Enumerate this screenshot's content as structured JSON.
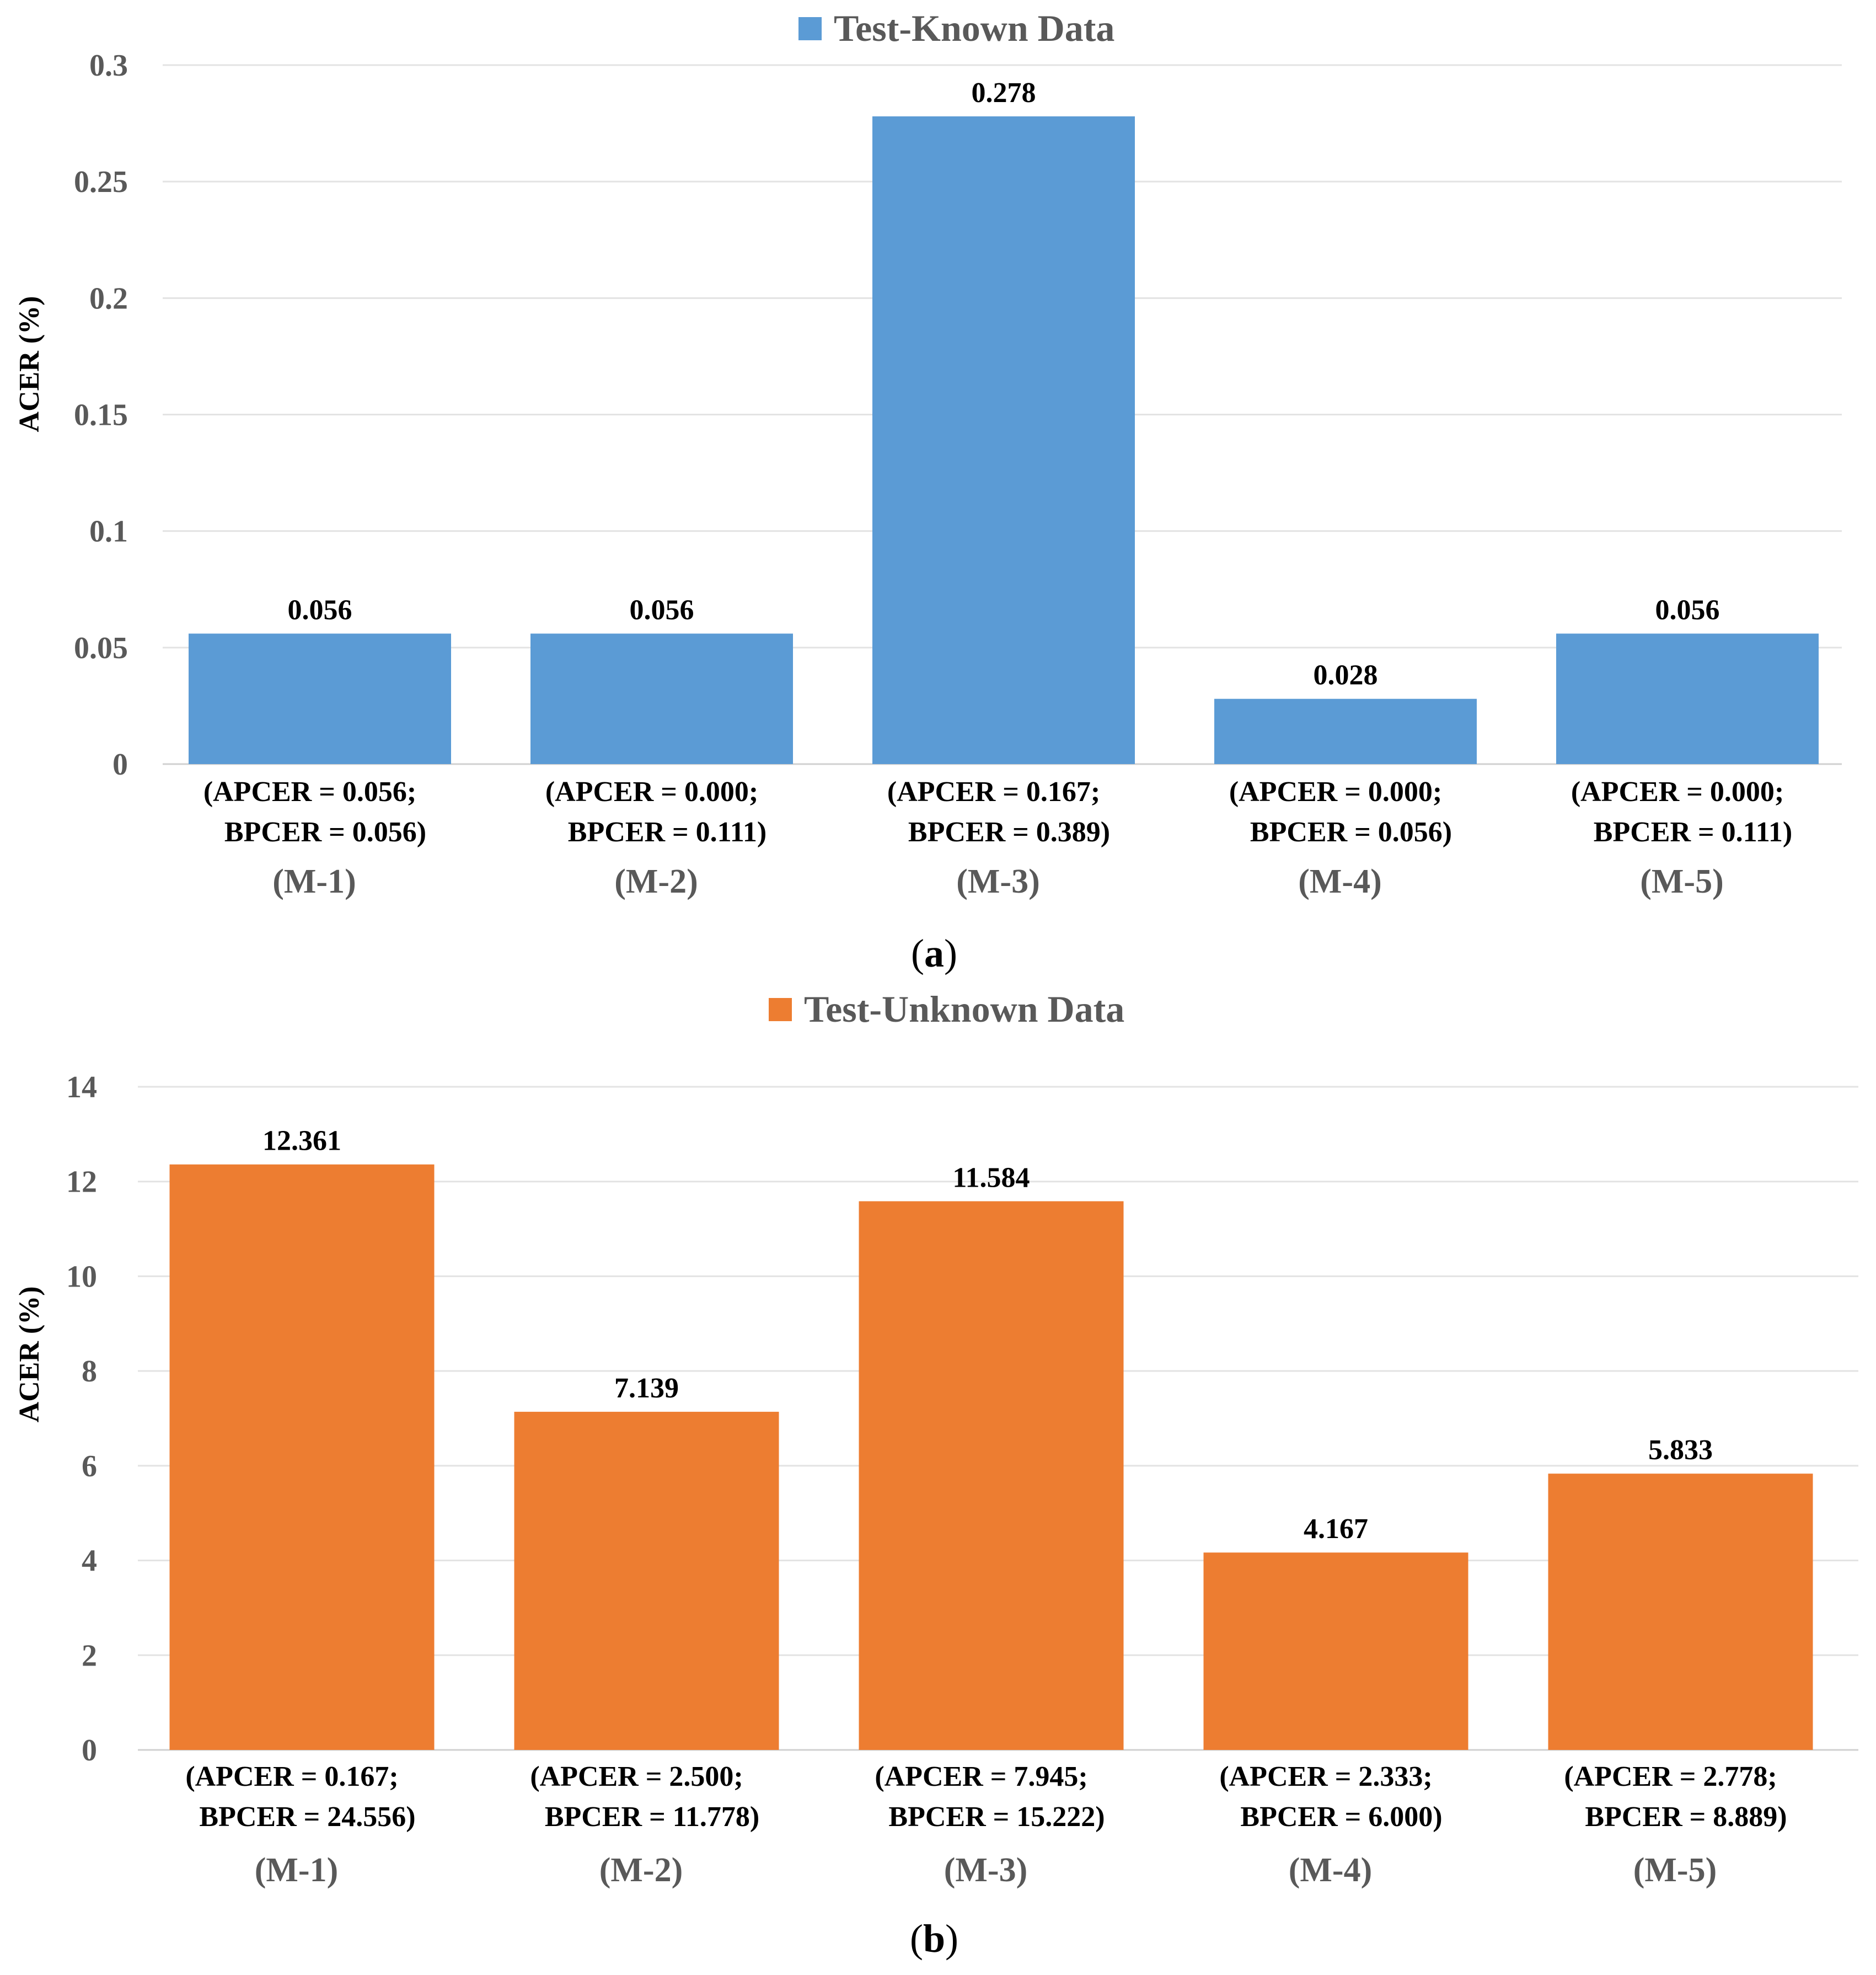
{
  "chart_data": [
    {
      "type": "bar",
      "panel_label": "a",
      "legend": "Test-Known Data",
      "ylabel": "ACER (%)",
      "ylim": [
        0,
        0.3
      ],
      "yticks": [
        "0",
        "0.05",
        "0.1",
        "0.15",
        "0.2",
        "0.25",
        "0.3"
      ],
      "ytick_values": [
        0,
        0.05,
        0.1,
        0.15,
        0.2,
        0.25,
        0.3
      ],
      "grid": true,
      "color": "#5B9BD5",
      "categories": [
        "(M-1)",
        "(M-2)",
        "(M-3)",
        "(M-4)",
        "(M-5)"
      ],
      "values": [
        0.056,
        0.056,
        0.278,
        0.028,
        0.056
      ],
      "value_labels": [
        "0.056",
        "0.056",
        "0.278",
        "0.028",
        "0.056"
      ],
      "sublabels": [
        [
          "(APCER = 0.056;",
          "BPCER = 0.056)"
        ],
        [
          "(APCER = 0.000;",
          "BPCER = 0.111)"
        ],
        [
          "(APCER = 0.167;",
          "BPCER = 0.389)"
        ],
        [
          "(APCER = 0.000;",
          "BPCER = 0.056)"
        ],
        [
          "(APCER = 0.000;",
          "BPCER = 0.111)"
        ]
      ]
    },
    {
      "type": "bar",
      "panel_label": "b",
      "legend": "Test-Unknown Data",
      "ylabel": "ACER (%)",
      "ylim": [
        0,
        14
      ],
      "yticks": [
        "0",
        "2",
        "4",
        "6",
        "8",
        "10",
        "12",
        "14"
      ],
      "ytick_values": [
        0,
        2,
        4,
        6,
        8,
        10,
        12,
        14
      ],
      "grid": true,
      "color": "#ED7D31",
      "categories": [
        "(M-1)",
        "(M-2)",
        "(M-3)",
        "(M-4)",
        "(M-5)"
      ],
      "values": [
        12.361,
        7.139,
        11.584,
        4.167,
        5.833
      ],
      "value_labels": [
        "12.361",
        "7.139",
        "11.584",
        "4.167",
        "5.833"
      ],
      "sublabels": [
        [
          "(APCER = 0.167;",
          "BPCER = 24.556)"
        ],
        [
          "(APCER = 2.500;",
          "BPCER = 11.778)"
        ],
        [
          "(APCER = 7.945;",
          "BPCER = 15.222)"
        ],
        [
          "(APCER = 2.333;",
          "BPCER = 6.000)"
        ],
        [
          "(APCER = 2.778;",
          "BPCER = 8.889)"
        ]
      ]
    }
  ]
}
